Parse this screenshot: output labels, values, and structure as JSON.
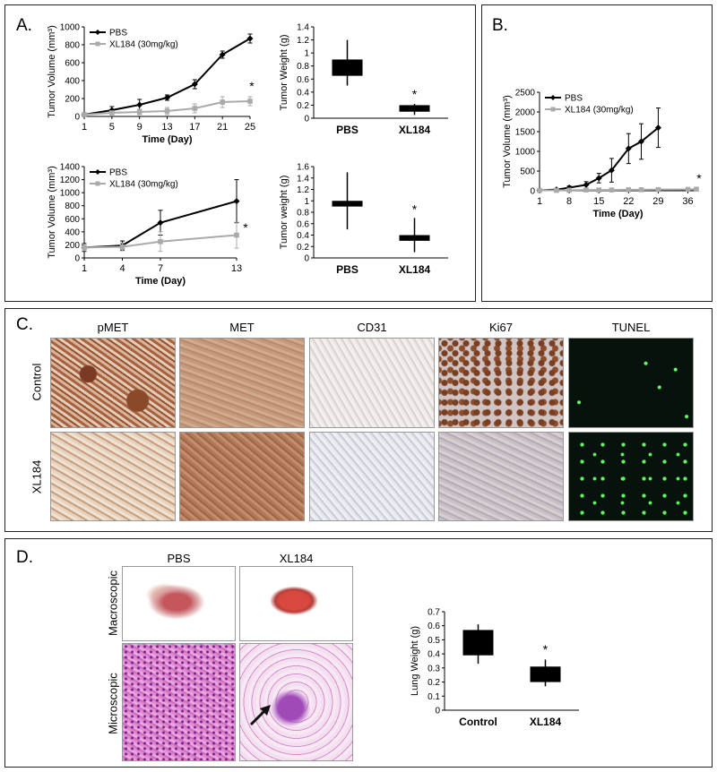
{
  "panels": {
    "a": {
      "label": "A."
    },
    "b": {
      "label": "B."
    },
    "c": {
      "label": "C."
    },
    "d": {
      "label": "D."
    }
  },
  "panel_c": {
    "columns": [
      "pMET",
      "MET",
      "CD31",
      "Ki67",
      "TUNEL"
    ],
    "rows": [
      "Control",
      "XL184"
    ]
  },
  "panel_d": {
    "columns": [
      "PBS",
      "XL184"
    ],
    "rows": [
      "Macroscopic",
      "Microscopic"
    ]
  },
  "colors": {
    "pbs": "#000000",
    "xl184": "#aaaaaa",
    "bar": "#000000"
  },
  "chart_data": [
    {
      "id": "a1",
      "type": "line",
      "x": [
        1,
        5,
        9,
        13,
        17,
        21,
        25
      ],
      "xticks": [
        "1",
        "5",
        "9",
        "13",
        "17",
        "21",
        "25"
      ],
      "xlabel": "Time (Day)",
      "ylabel": "Tumor Volume (mm³)",
      "ylim": [
        0,
        1000
      ],
      "yticks": [
        0,
        200,
        400,
        600,
        800,
        1000
      ],
      "legend": "top-left",
      "series": [
        {
          "name": "PBS",
          "values": [
            20,
            70,
            130,
            210,
            360,
            690,
            870
          ],
          "err": [
            20,
            40,
            60,
            30,
            50,
            40,
            50
          ]
        },
        {
          "name": "XL184 (30mg/kg)",
          "values": [
            20,
            40,
            50,
            60,
            90,
            160,
            170
          ],
          "err": [
            10,
            20,
            30,
            40,
            50,
            60,
            50
          ]
        }
      ],
      "annotation": "*"
    },
    {
      "id": "a2",
      "type": "boxplot",
      "categories": [
        "PBS",
        "XL184"
      ],
      "ylabel": "Tumor Weight (g)",
      "ylim": [
        0,
        1.4
      ],
      "yticks": [
        "0",
        "0.2",
        "0.4",
        "0.6",
        "0.8",
        "1",
        "1.2",
        "1.4"
      ],
      "boxes": [
        {
          "min": 0.5,
          "q1": 0.65,
          "q3": 0.9,
          "max": 1.2
        },
        {
          "min": 0.05,
          "q1": 0.1,
          "q3": 0.2,
          "max": 0.22
        }
      ],
      "annotation": "*"
    },
    {
      "id": "a3",
      "type": "line",
      "x": [
        1,
        4,
        7,
        13
      ],
      "xticks": [
        "1",
        "4",
        "7",
        "13"
      ],
      "xlabel": "Time (Day)",
      "ylabel": "Tumor Volume (mm³)",
      "ylim": [
        0,
        1400
      ],
      "yticks": [
        0,
        200,
        400,
        600,
        800,
        1000,
        1200,
        1400
      ],
      "legend": "top-left",
      "series": [
        {
          "name": "PBS",
          "values": [
            160,
            190,
            540,
            870
          ],
          "err": [
            60,
            70,
            190,
            330
          ]
        },
        {
          "name": "XL184 (30mg/kg)",
          "values": [
            160,
            170,
            250,
            350
          ],
          "err": [
            50,
            60,
            150,
            200
          ]
        }
      ],
      "annotation": "*"
    },
    {
      "id": "a4",
      "type": "boxplot",
      "categories": [
        "PBS",
        "XL184"
      ],
      "ylabel": "Tumor weight (g)",
      "ylim": [
        0,
        1.6
      ],
      "yticks": [
        "0",
        "0.2",
        "0.4",
        "0.6",
        "0.8",
        "1",
        "1.2",
        "1.4",
        "1.6"
      ],
      "boxes": [
        {
          "min": 0.5,
          "q1": 0.9,
          "q3": 1.0,
          "max": 1.5
        },
        {
          "min": 0.1,
          "q1": 0.3,
          "q3": 0.4,
          "max": 0.7
        }
      ],
      "annotation": "*"
    },
    {
      "id": "b1",
      "type": "line",
      "x": [
        1,
        5,
        8,
        12,
        15,
        18,
        22,
        25,
        29,
        36,
        38
      ],
      "xticks": [
        "1",
        "8",
        "15",
        "22",
        "29",
        "36"
      ],
      "xlabel": "Time (Day)",
      "ylabel": "Tumor Volume (mm³)",
      "ylim": [
        0,
        2500
      ],
      "yticks": [
        0,
        500,
        1000,
        1500,
        2000,
        2500
      ],
      "legend": "top-left",
      "series": [
        {
          "name": "PBS",
          "values": [
            10,
            30,
            80,
            150,
            320,
            520,
            1070,
            1250,
            1600,
            null,
            null
          ],
          "err": [
            10,
            15,
            40,
            80,
            120,
            300,
            380,
            450,
            500,
            null,
            null
          ]
        },
        {
          "name": "XL184 (30mg/kg)",
          "values": [
            10,
            10,
            15,
            20,
            20,
            20,
            25,
            25,
            30,
            35,
            40
          ],
          "err": [
            5,
            5,
            5,
            5,
            5,
            5,
            5,
            5,
            5,
            5,
            5
          ]
        }
      ],
      "annotation": "*"
    },
    {
      "id": "d1",
      "type": "boxplot",
      "categories": [
        "Control",
        "XL184"
      ],
      "ylabel": "Lung Weight (g)",
      "ylim": [
        0,
        0.7
      ],
      "yticks": [
        "0",
        "0.1",
        "0.2",
        "0.3",
        "0.4",
        "0.5",
        "0.6",
        "0.7"
      ],
      "boxes": [
        {
          "min": 0.33,
          "q1": 0.39,
          "q3": 0.57,
          "max": 0.61
        },
        {
          "min": 0.17,
          "q1": 0.2,
          "q3": 0.31,
          "max": 0.36
        }
      ],
      "annotation": "*"
    }
  ]
}
